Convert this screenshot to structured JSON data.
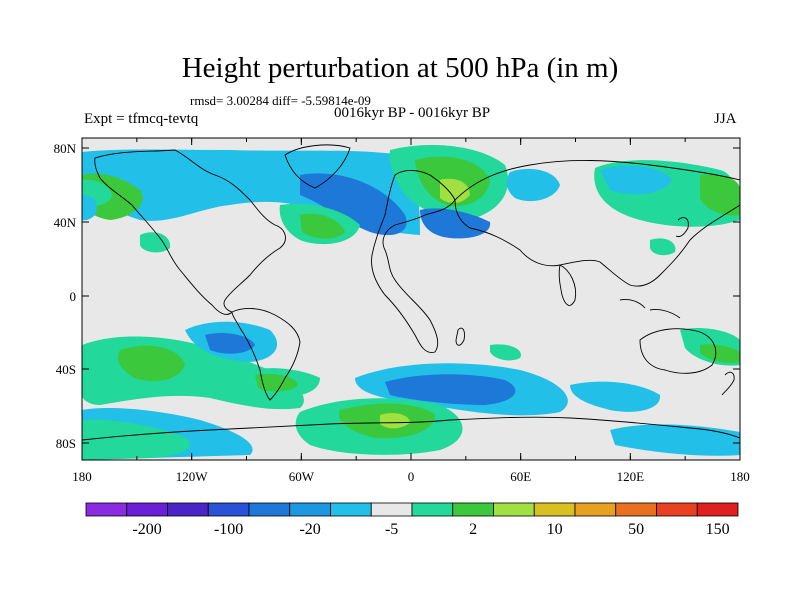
{
  "title": "Height perturbation at 500 hPa (in m)",
  "stats_line": "rmsd= 3.00284 diff= -5.59814e-09",
  "left_label": "Expt = tfmcq-tevtq",
  "center_label": "0016kyr BP - 0016kyr BP",
  "right_label": "JJA",
  "lat_ticks": [
    "80N",
    "40N",
    "0",
    "40S",
    "80S"
  ],
  "lon_ticks": [
    "180",
    "120W",
    "60W",
    "0",
    "60E",
    "120E",
    "180"
  ],
  "colorbar": {
    "colors": [
      "#8a2be2",
      "#6a1fd8",
      "#4b24c8",
      "#2a52d8",
      "#1e78d8",
      "#1c98e0",
      "#22c0e8",
      "#e8e8e8",
      "#22d89a",
      "#3cc83c",
      "#a0e040",
      "#d8c020",
      "#e8a020",
      "#e87020",
      "#e84020",
      "#e02020"
    ],
    "labels": [
      "-200",
      "-100",
      "-20",
      "-5",
      "2",
      "10",
      "50",
      "150"
    ]
  }
}
